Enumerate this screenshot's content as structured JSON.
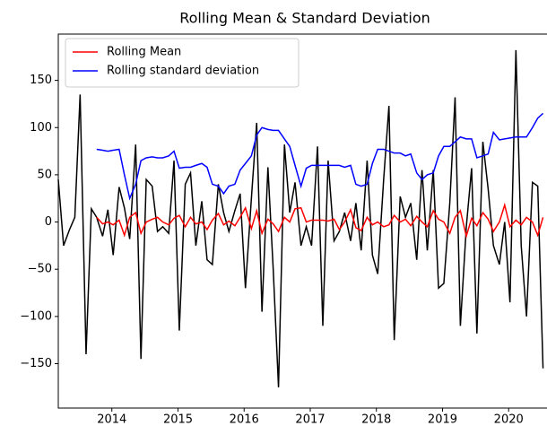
{
  "chart_data": {
    "type": "line",
    "title": "Rolling Mean & Standard Deviation",
    "x": [
      2013.19,
      2013.27,
      2013.36,
      2013.44,
      2013.52,
      2013.61,
      2013.69,
      2013.77,
      2013.86,
      2013.94,
      2014.02,
      2014.11,
      2014.19,
      2014.27,
      2014.36,
      2014.44,
      2014.52,
      2014.61,
      2014.69,
      2014.77,
      2014.86,
      2014.94,
      2015.02,
      2015.11,
      2015.19,
      2015.27,
      2015.36,
      2015.44,
      2015.52,
      2015.61,
      2015.69,
      2015.77,
      2015.86,
      2015.94,
      2016.02,
      2016.11,
      2016.19,
      2016.27,
      2016.36,
      2016.44,
      2016.52,
      2016.61,
      2016.69,
      2016.77,
      2016.86,
      2016.94,
      2017.02,
      2017.11,
      2017.19,
      2017.27,
      2017.36,
      2017.44,
      2017.52,
      2017.61,
      2017.69,
      2017.77,
      2017.86,
      2017.94,
      2018.02,
      2018.11,
      2018.19,
      2018.27,
      2018.36,
      2018.44,
      2018.52,
      2018.61,
      2018.69,
      2018.77,
      2018.86,
      2018.94,
      2019.02,
      2019.11,
      2019.19,
      2019.27,
      2019.36,
      2019.44,
      2019.52,
      2019.61,
      2019.69,
      2019.77,
      2019.86,
      2019.94,
      2020.02,
      2020.11,
      2020.19,
      2020.27,
      2020.36,
      2020.44,
      2020.52
    ],
    "series": [
      {
        "color": "#000000",
        "values": [
          45,
          -25,
          -8,
          5,
          135,
          -140,
          14,
          5,
          -15,
          13,
          -35,
          37,
          15,
          -18,
          82,
          -145,
          45,
          38,
          -10,
          -5,
          -12,
          65,
          -115,
          40,
          52,
          -25,
          22,
          -40,
          -45,
          40,
          10,
          -10,
          12,
          30,
          -70,
          25,
          105,
          -95,
          58,
          -50,
          -175,
          82,
          10,
          42,
          -25,
          -5,
          -25,
          80,
          -110,
          65,
          -20,
          -10,
          10,
          -20,
          20,
          -30,
          65,
          -35,
          -55,
          45,
          123,
          -125,
          27,
          5,
          20,
          -40,
          55,
          -30,
          55,
          -70,
          -65,
          20,
          132,
          -110,
          -5,
          57,
          -118,
          85,
          35,
          -25,
          -45,
          0,
          -85,
          182,
          -25,
          -100,
          42,
          38,
          -155
        ]
      },
      {
        "name": "Rolling Mean",
        "color": "#ff0000",
        "values": [
          null,
          null,
          null,
          null,
          null,
          null,
          null,
          5,
          -2,
          0,
          -3,
          2,
          -14,
          5,
          10,
          -12,
          0,
          3,
          5,
          0,
          -3,
          4,
          7,
          -5,
          5,
          -2,
          0,
          -8,
          2,
          9,
          -3,
          1,
          -4,
          5,
          15,
          -7,
          12,
          -12,
          3,
          -2,
          -10,
          5,
          0,
          14,
          15,
          0,
          2,
          2,
          2,
          1,
          3,
          -8,
          0,
          13,
          -6,
          -9,
          5,
          -3,
          0,
          -5,
          -3,
          7,
          0,
          3,
          -4,
          6,
          0,
          -5,
          12,
          3,
          0,
          -12,
          5,
          12,
          -15,
          4,
          -4,
          10,
          3,
          -10,
          0,
          18,
          -5,
          2,
          -3,
          5,
          0,
          -14,
          5
        ]
      },
      {
        "name": "Rolling standard deviation",
        "color": "#0000ff",
        "values": [
          null,
          null,
          null,
          null,
          null,
          null,
          null,
          77,
          76,
          75,
          76,
          77,
          50,
          25,
          40,
          65,
          68,
          69,
          68,
          68,
          70,
          75,
          57,
          58,
          58,
          60,
          62,
          58,
          40,
          38,
          30,
          38,
          40,
          55,
          62,
          70,
          92,
          100,
          98,
          97,
          97,
          88,
          80,
          60,
          38,
          57,
          60,
          60,
          60,
          60,
          60,
          60,
          58,
          60,
          40,
          38,
          40,
          62,
          77,
          77,
          75,
          73,
          73,
          70,
          72,
          52,
          45,
          50,
          52,
          70,
          80,
          80,
          85,
          90,
          88,
          88,
          68,
          70,
          72,
          95,
          87,
          88,
          89,
          90,
          90,
          90,
          100,
          110,
          115
        ]
      }
    ],
    "xlim": [
      2013.19,
      2020.58
    ],
    "xticks": [
      2014,
      2015,
      2016,
      2017,
      2018,
      2019,
      2020
    ],
    "ylim": [
      -197,
      199
    ],
    "yticks": [
      {
        "value": -150,
        "label": "−150"
      },
      {
        "value": -100,
        "label": "−100"
      },
      {
        "value": -50,
        "label": "−50"
      },
      0,
      50,
      100,
      150
    ],
    "legend": "upper left"
  }
}
